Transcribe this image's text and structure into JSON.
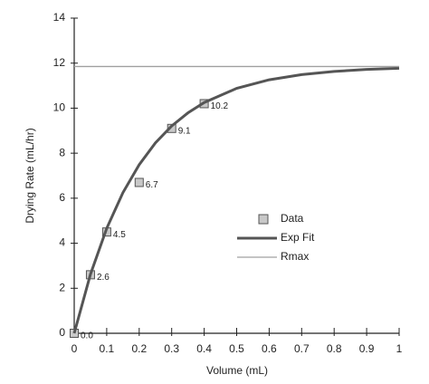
{
  "chart_data": {
    "type": "scatter",
    "xlabel": "Volume (mL)",
    "ylabel": "Drying Rate (mL/hr)",
    "xlim": [
      0,
      1
    ],
    "xticks": [
      0,
      0.1,
      0.2,
      0.3,
      0.4,
      0.5,
      0.6,
      0.7,
      0.8,
      0.9,
      1
    ],
    "ylim": [
      0,
      14
    ],
    "yticks": [
      0,
      2,
      4,
      6,
      8,
      10,
      12,
      14
    ],
    "legend": "center-right",
    "series": [
      {
        "name": "Data",
        "kind": "markers",
        "color": "#c8c8c8",
        "x": [
          0,
          0.05,
          0.1,
          0.2,
          0.3,
          0.4
        ],
        "values": [
          0,
          2.6,
          4.5,
          6.7,
          9.1,
          10.2
        ],
        "value_labels": [
          "0.0",
          "2.6",
          "4.5",
          "6.7",
          "9.1",
          "10.2"
        ]
      },
      {
        "name": "Exp Fit",
        "kind": "line",
        "color": "#555555",
        "x": [
          0,
          0.05,
          0.1,
          0.15,
          0.2,
          0.25,
          0.3,
          0.35,
          0.4,
          0.5,
          0.6,
          0.7,
          0.8,
          0.9,
          1
        ],
        "values": [
          0,
          2.62,
          4.66,
          6.25,
          7.49,
          8.46,
          9.21,
          9.79,
          10.25,
          10.88,
          11.26,
          11.49,
          11.63,
          11.72,
          11.77
        ]
      },
      {
        "name": "Rmax",
        "kind": "thin",
        "color": "#a0a0a0",
        "x": [
          0,
          1
        ],
        "values": [
          11.85,
          11.85
        ]
      }
    ]
  }
}
